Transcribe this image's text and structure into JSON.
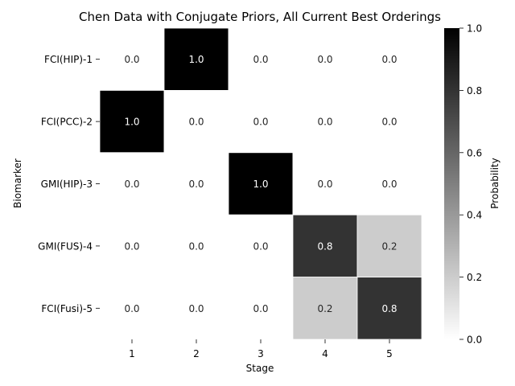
{
  "chart_data": {
    "type": "heatmap",
    "title": "Chen Data with Conjugate Priors, All Current Best Orderings",
    "xlabel": "Stage",
    "ylabel": "Biomarker",
    "x_categories": [
      "1",
      "2",
      "3",
      "4",
      "5"
    ],
    "y_categories": [
      "FCI(HIP)-1",
      "FCI(PCC)-2",
      "GMI(HIP)-3",
      "GMI(FUS)-4",
      "FCI(Fusi)-5"
    ],
    "values": [
      [
        0.0,
        1.0,
        0.0,
        0.0,
        0.0
      ],
      [
        1.0,
        0.0,
        0.0,
        0.0,
        0.0
      ],
      [
        0.0,
        0.0,
        1.0,
        0.0,
        0.0
      ],
      [
        0.0,
        0.0,
        0.0,
        0.8,
        0.2
      ],
      [
        0.0,
        0.0,
        0.0,
        0.2,
        0.8
      ]
    ],
    "colorbar": {
      "label": "Probability",
      "range": [
        0.0,
        1.0
      ],
      "ticks": [
        "0.0",
        "0.2",
        "0.4",
        "0.6",
        "0.8",
        "1.0"
      ],
      "colormap": "Greys"
    }
  }
}
